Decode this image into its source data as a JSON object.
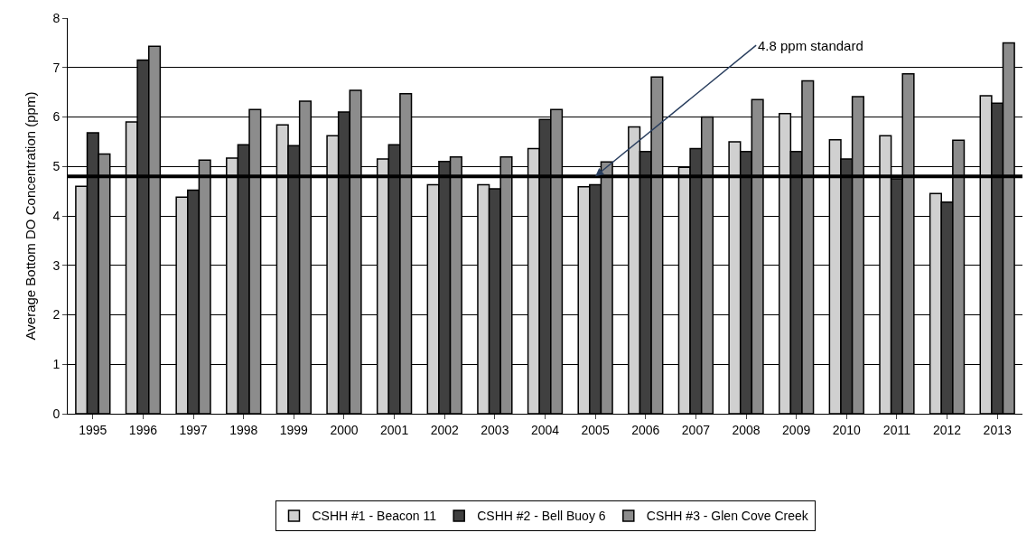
{
  "chart_data": {
    "type": "bar",
    "ylabel": "Average Bottom DO Concentration (ppm)",
    "categories": [
      "1995",
      "1996",
      "1997",
      "1998",
      "1999",
      "2000",
      "2001",
      "2002",
      "2003",
      "2004",
      "2005",
      "2006",
      "2007",
      "2008",
      "2009",
      "2010",
      "2011",
      "2012",
      "2013"
    ],
    "series": [
      {
        "name": "CSHH #1 - Beacon 11",
        "color": "#d0d0d0",
        "values": [
          4.6,
          5.9,
          4.38,
          5.17,
          5.84,
          5.62,
          5.15,
          4.63,
          4.63,
          5.36,
          4.59,
          5.8,
          4.98,
          5.5,
          6.07,
          5.54,
          5.62,
          4.45,
          6.43
        ]
      },
      {
        "name": "CSHH #2 - Bell Buoy 6",
        "color": "#404040",
        "values": [
          5.68,
          7.15,
          4.52,
          5.44,
          5.42,
          6.1,
          5.44,
          5.1,
          4.55,
          5.95,
          4.63,
          5.3,
          5.36,
          5.3,
          5.3,
          5.15,
          4.75,
          4.28,
          6.28
        ]
      },
      {
        "name": "CSHH #3 - Glen Cove Creek",
        "color": "#8c8c8c",
        "values": [
          5.25,
          7.43,
          5.13,
          6.15,
          6.32,
          6.54,
          6.47,
          5.19,
          5.19,
          6.15,
          5.09,
          6.81,
          6.0,
          6.35,
          6.73,
          6.41,
          6.87,
          5.53,
          7.5
        ]
      }
    ],
    "ylim": [
      0,
      8
    ],
    "yticks": [
      0,
      1,
      2,
      3,
      4,
      5,
      6,
      7,
      8
    ],
    "grid": "y",
    "legend": "bottom",
    "ref_lines": [
      {
        "axis": "y",
        "value": 4.8,
        "label": "4.8 ppm standard",
        "color": "#000000"
      }
    ]
  }
}
